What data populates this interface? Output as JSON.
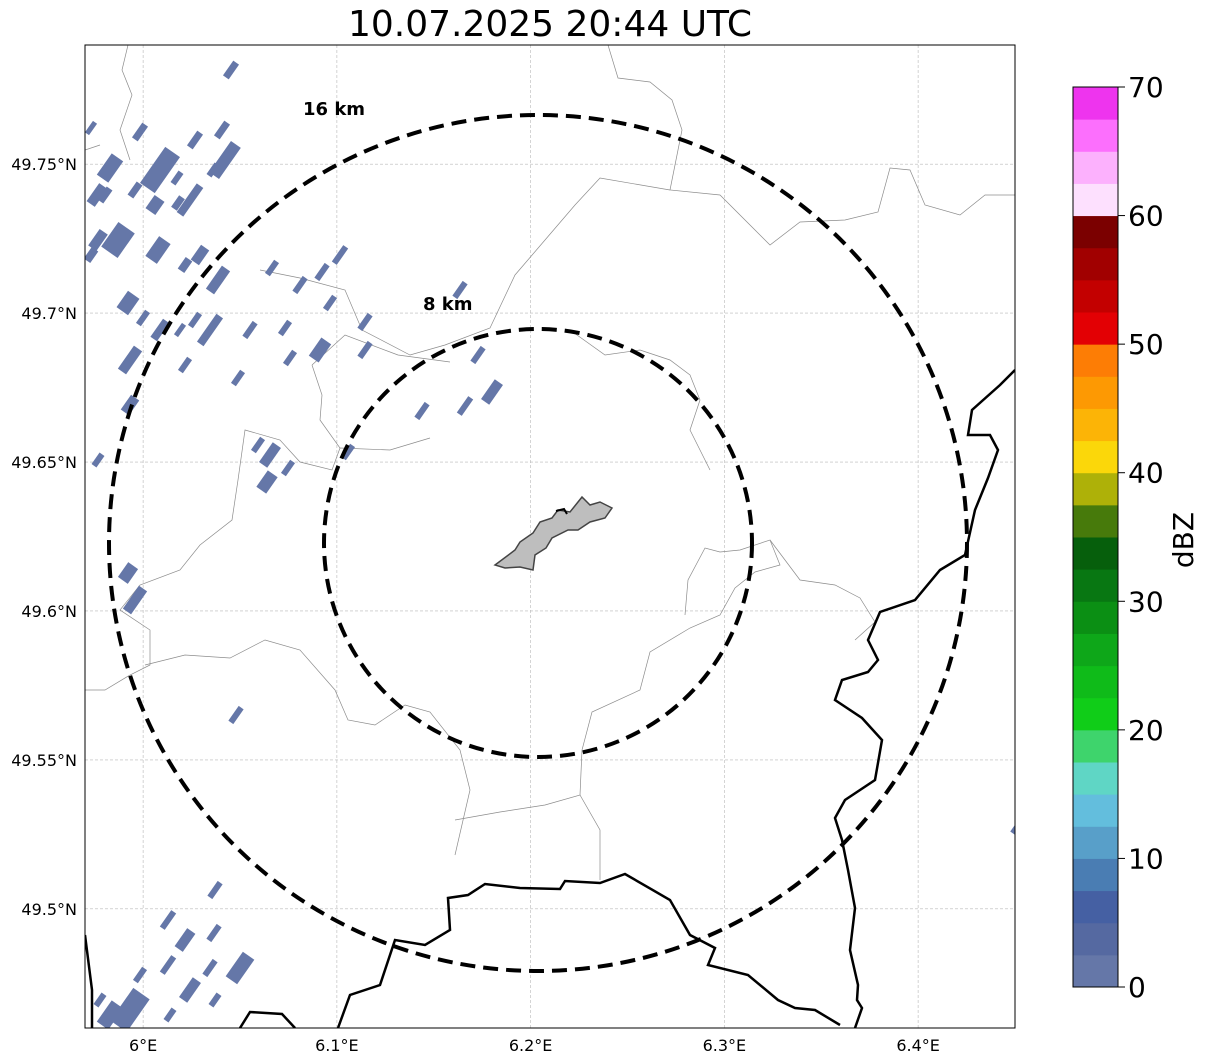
{
  "title": "10.07.2025 20:44 UTC",
  "map": {
    "lon_range": [
      5.97,
      6.45
    ],
    "lat_range": [
      49.46,
      49.79
    ],
    "lat_ticks": [
      {
        "value": 49.5,
        "label": "49.5°N"
      },
      {
        "value": 49.55,
        "label": "49.55°N"
      },
      {
        "value": 49.6,
        "label": "49.6°N"
      },
      {
        "value": 49.65,
        "label": "49.65°N"
      },
      {
        "value": 49.7,
        "label": "49.7°N"
      },
      {
        "value": 49.75,
        "label": "49.75°N"
      }
    ],
    "lon_ticks": [
      {
        "value": 6.0,
        "label": "6°E"
      },
      {
        "value": 6.1,
        "label": "6.1°E"
      },
      {
        "value": 6.2,
        "label": "6.2°E"
      },
      {
        "value": 6.3,
        "label": "6.3°E"
      },
      {
        "value": 6.4,
        "label": "6.4°E"
      }
    ],
    "center": {
      "lon": 6.202,
      "lat": 49.623
    },
    "ring_labels": {
      "outer": "16 km",
      "inner": "8 km"
    },
    "city_fill": "#bebebe",
    "echo_color": "#6577a8"
  },
  "colorbar": {
    "label": "dBZ",
    "min": 0,
    "max": 70,
    "ticks": [
      {
        "value": 0,
        "label": "0"
      },
      {
        "value": 10,
        "label": "10"
      },
      {
        "value": 20,
        "label": "20"
      },
      {
        "value": 30,
        "label": "30"
      },
      {
        "value": 40,
        "label": "40"
      },
      {
        "value": 50,
        "label": "50"
      },
      {
        "value": 60,
        "label": "60"
      },
      {
        "value": 70,
        "label": "70"
      }
    ],
    "colors": [
      "#6577a8",
      "#5569a1",
      "#4560a3",
      "#4a7db3",
      "#589fc9",
      "#63bedd",
      "#5fd6c5",
      "#3ed46c",
      "#10cd18",
      "#0fbb19",
      "#0ea719",
      "#0b8f14",
      "#087712",
      "#065f0c",
      "#477a0b",
      "#aeb108",
      "#fbd70a",
      "#fcb406",
      "#fd9903",
      "#fd7d05",
      "#e30004",
      "#c30000",
      "#a10000",
      "#7b0000",
      "#fde0fe",
      "#fcb1fd",
      "#fc6ffd",
      "#ee34ee"
    ]
  }
}
